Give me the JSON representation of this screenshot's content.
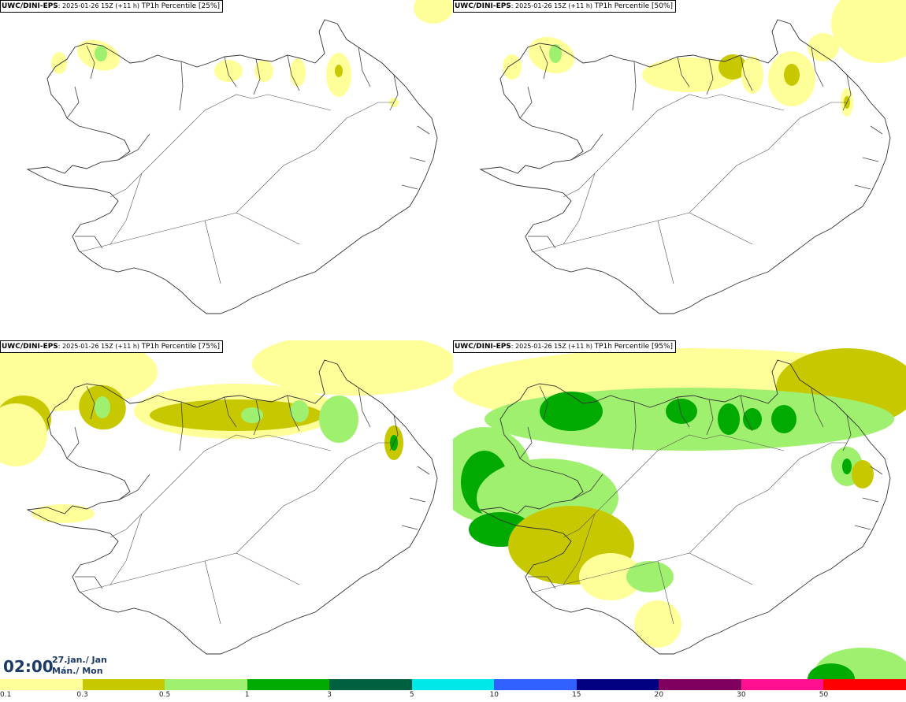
{
  "panels": [
    {
      "model": "UWC/DINI-EPS",
      "run": ": 2025-01-26 15Z (+11 h)",
      "product": "TP1h Percentile [25%]",
      "intensity": 0
    },
    {
      "model": "UWC/DINI-EPS",
      "run": ": 2025-01-26 15Z (+11 h)",
      "product": "TP1h Percentile [50%]",
      "intensity": 1
    },
    {
      "model": "UWC/DINI-EPS",
      "run": ": 2025-01-26 15Z (+11 h)",
      "product": "TP1h Percentile [75%]",
      "intensity": 2
    },
    {
      "model": "UWC/DINI-EPS",
      "run": ": 2025-01-26 15Z (+11 h)",
      "product": "TP1h Percentile [95%]",
      "intensity": 3
    }
  ],
  "time": {
    "hour": "02:00",
    "date_line1": "27.jan./ Jan",
    "date_line2": "Mán./ Mon"
  },
  "colorbar": {
    "colors": [
      "#ffff99",
      "#c8c800",
      "#a0f070",
      "#00aa00",
      "#006040",
      "#00e8e8",
      "#3060ff",
      "#000080",
      "#800060",
      "#ff1090",
      "#ff0000"
    ],
    "ticks": [
      "0.1",
      "0.3",
      "0.5",
      "1",
      "3",
      "5",
      "10",
      "15",
      "20",
      "30",
      "50"
    ]
  }
}
